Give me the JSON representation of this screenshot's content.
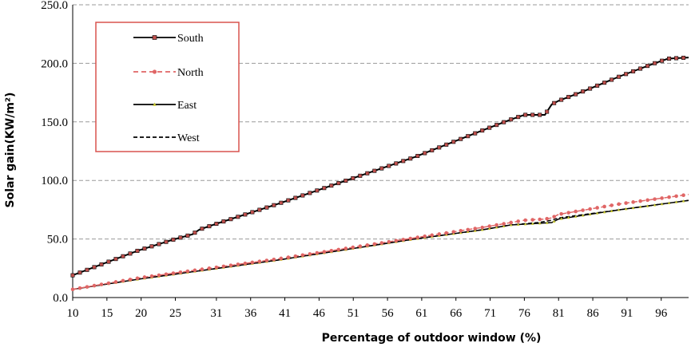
{
  "chart_data": {
    "type": "line",
    "title": "",
    "xlabel": "Percentage of outdoor window (%)",
    "ylabel": "Solar gain(KW/m²)",
    "xlim": [
      10,
      100
    ],
    "ylim": [
      0,
      250
    ],
    "yticks": [
      "0.0",
      "50.0",
      "100.0",
      "150.0",
      "200.0",
      "250.0"
    ],
    "xticks": [
      "10",
      "15",
      "20",
      "25",
      "31",
      "36",
      "41",
      "46",
      "51",
      "56",
      "61",
      "66",
      "71",
      "76",
      "81",
      "86",
      "91",
      "96"
    ],
    "grid": "horizontal-dashed",
    "legend_position": "top-left",
    "series": [
      {
        "name": "South",
        "color": "#000000",
        "marker_color": "#c0504d",
        "style": "solid-square-markers",
        "x": [
          10,
          19.5,
          25,
          27.5,
          28.5,
          31,
          40,
          50,
          60,
          70,
          74,
          76,
          79,
          80,
          81,
          85,
          90,
          95,
          97,
          100
        ],
        "y": [
          19,
          40,
          50,
          54,
          58,
          63,
          80,
          100,
          120,
          143,
          152,
          156,
          156,
          165,
          168,
          177,
          189,
          200,
          204,
          205
        ]
      },
      {
        "name": "North",
        "color": "#e06666",
        "style": "dashed-round-markers",
        "x": [
          10,
          20,
          30,
          40,
          50,
          60,
          70,
          76,
          79,
          80,
          81,
          90,
          100
        ],
        "y": [
          7,
          17,
          25,
          33,
          42,
          51,
          60,
          66,
          67,
          68,
          71,
          80,
          88
        ]
      },
      {
        "name": "East",
        "color": "#000000",
        "marker_color": "#c8c832",
        "style": "solid-triangle-markers",
        "x": [
          10,
          20,
          30,
          40,
          50,
          60,
          70,
          74,
          80,
          81,
          90,
          100
        ],
        "y": [
          7,
          16,
          24,
          32,
          41,
          50,
          58,
          62,
          64,
          67,
          75,
          83
        ]
      },
      {
        "name": "West",
        "color": "#000000",
        "style": "dashed",
        "x": [
          10,
          20,
          30,
          40,
          50,
          60,
          70,
          74,
          78,
          80,
          81,
          90,
          100
        ],
        "y": [
          7,
          16,
          24,
          32,
          41,
          50,
          58,
          62,
          64,
          66,
          68,
          75,
          83
        ]
      }
    ]
  }
}
